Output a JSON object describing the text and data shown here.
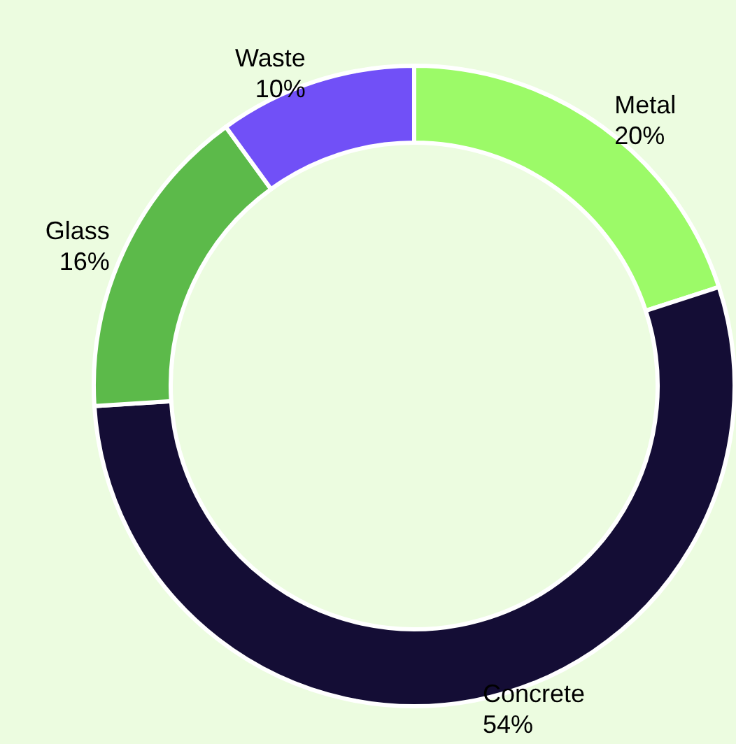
{
  "chart_data": {
    "type": "donut",
    "categories": [
      "Metal",
      "Concrete",
      "Glass",
      "Waste"
    ],
    "values": [
      20,
      54,
      16,
      10
    ],
    "value_labels": [
      "20%",
      "54%",
      "16%",
      "10%"
    ],
    "colors": [
      "#9cfa68",
      "#140d35",
      "#5cba4a",
      "#7150f7"
    ]
  }
}
